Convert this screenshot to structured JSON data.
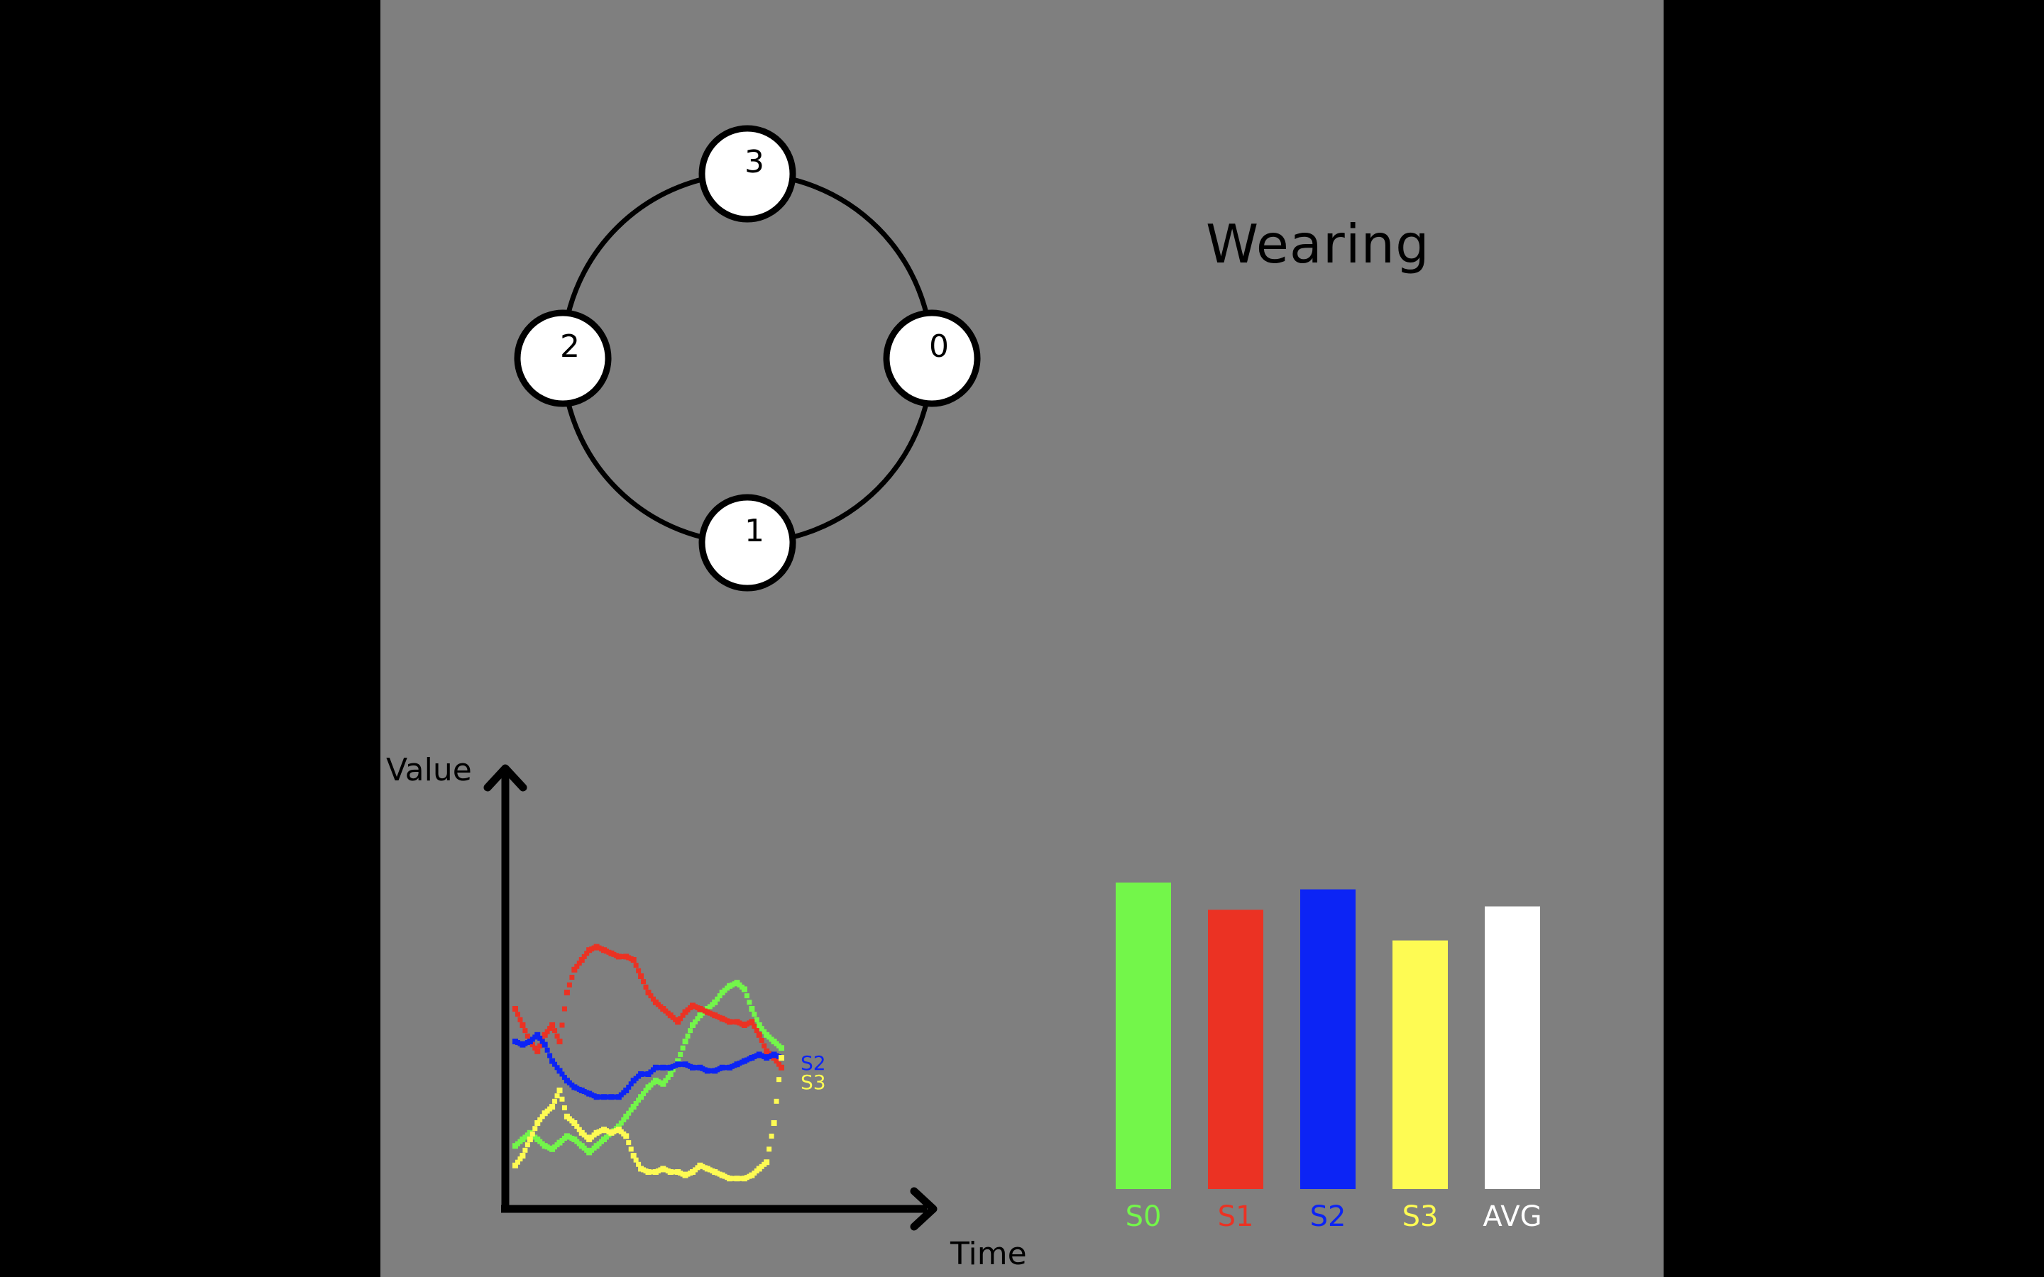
{
  "status_text": "Wearing",
  "ring": {
    "nodes": [
      {
        "id": "3",
        "angle_deg": 90
      },
      {
        "id": "0",
        "angle_deg": 0
      },
      {
        "id": "1",
        "angle_deg": 270
      },
      {
        "id": "2",
        "angle_deg": 180
      }
    ]
  },
  "colors": {
    "background": "#7f7f7f",
    "S0": "#73f64a",
    "S1": "#eb3223",
    "S2": "#0c24f5",
    "S3": "#fefb53",
    "AVG": "#ffffff"
  },
  "chart_data": [
    {
      "type": "scatter",
      "xlabel": "Time",
      "ylabel": "Value",
      "series": [
        {
          "name": "S0",
          "color": "#73f64a",
          "values": [
            0.18,
            0.2,
            0.22,
            0.2,
            0.18,
            0.17,
            0.19,
            0.21,
            0.2,
            0.18,
            0.16,
            0.18,
            0.2,
            0.22,
            0.24,
            0.27,
            0.3,
            0.33,
            0.36,
            0.38,
            0.37,
            0.4,
            0.44,
            0.5,
            0.55,
            0.58,
            0.6,
            0.62,
            0.65,
            0.67,
            0.68,
            0.66,
            0.6,
            0.55,
            0.52,
            0.5,
            0.48
          ]
        },
        {
          "name": "S1",
          "color": "#eb3223",
          "values": [
            0.6,
            0.55,
            0.5,
            0.47,
            0.52,
            0.55,
            0.5,
            0.65,
            0.72,
            0.75,
            0.78,
            0.79,
            0.78,
            0.77,
            0.76,
            0.76,
            0.75,
            0.7,
            0.65,
            0.62,
            0.6,
            0.58,
            0.56,
            0.59,
            0.61,
            0.6,
            0.59,
            0.58,
            0.57,
            0.56,
            0.56,
            0.55,
            0.56,
            0.52,
            0.47,
            0.45,
            0.42
          ]
        },
        {
          "name": "S2",
          "color": "#0c24f5",
          "values": [
            0.5,
            0.49,
            0.5,
            0.52,
            0.49,
            0.44,
            0.41,
            0.38,
            0.36,
            0.35,
            0.34,
            0.33,
            0.33,
            0.33,
            0.33,
            0.35,
            0.38,
            0.4,
            0.4,
            0.42,
            0.42,
            0.42,
            0.43,
            0.43,
            0.42,
            0.42,
            0.41,
            0.41,
            0.42,
            0.42,
            0.43,
            0.44,
            0.45,
            0.46,
            0.45,
            0.46,
            0.45
          ]
        },
        {
          "name": "S3",
          "color": "#fefb53",
          "values": [
            0.12,
            0.15,
            0.2,
            0.25,
            0.28,
            0.3,
            0.35,
            0.27,
            0.25,
            0.22,
            0.2,
            0.22,
            0.23,
            0.22,
            0.23,
            0.21,
            0.15,
            0.11,
            0.1,
            0.1,
            0.11,
            0.1,
            0.1,
            0.09,
            0.1,
            0.12,
            0.11,
            0.1,
            0.09,
            0.08,
            0.08,
            0.08,
            0.09,
            0.11,
            0.13,
            0.25,
            0.45
          ]
        }
      ],
      "end_labels": [
        "S2",
        "S3"
      ]
    },
    {
      "type": "bar",
      "categories": [
        "S0",
        "S1",
        "S2",
        "S3",
        "AVG"
      ],
      "values": [
        0.9,
        0.82,
        0.88,
        0.73,
        0.83
      ],
      "colors": [
        "#73f64a",
        "#eb3223",
        "#0c24f5",
        "#fefb53",
        "#ffffff"
      ]
    }
  ]
}
